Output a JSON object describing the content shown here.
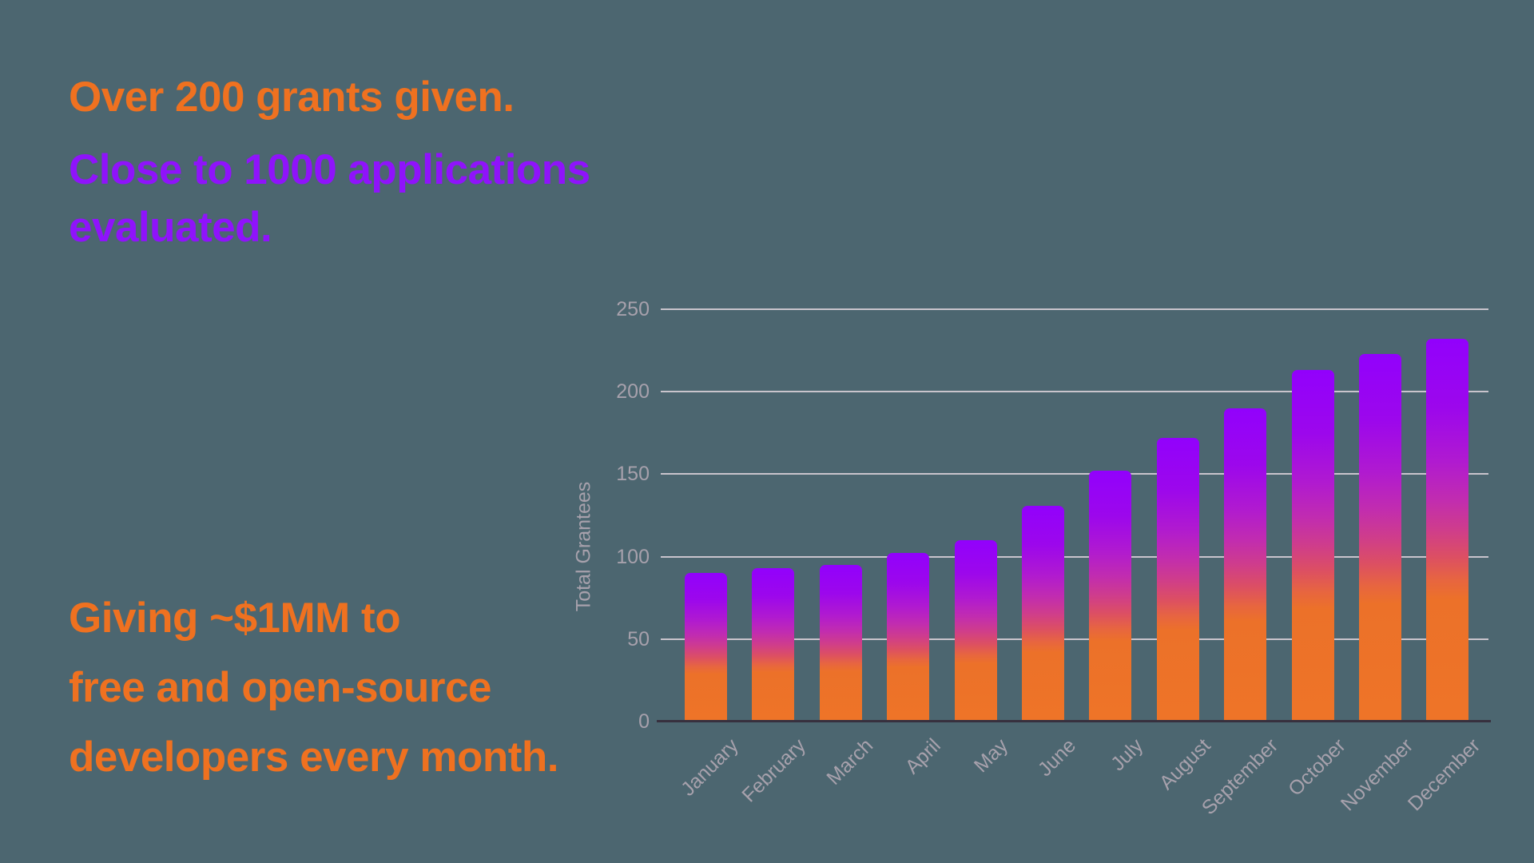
{
  "slide": {
    "headline_grants": "Over 200 grants given.",
    "headline_applications_line1": "Close to 1000 applications",
    "headline_applications_line2": "evaluated.",
    "headline_giving_lines": [
      "Giving ~$1MM to",
      "free and open-source",
      "developers every month."
    ]
  },
  "colors": {
    "background": "#4C6670",
    "orange": "#EF7120",
    "purple": "#8F13FB",
    "axis_text": "#A7A1AC",
    "gridline": "#C9C4CC",
    "baseline": "#37303E"
  },
  "chart_data": {
    "type": "bar",
    "title": "",
    "xlabel": "",
    "ylabel": "Total Grantees",
    "ylim": [
      0,
      250
    ],
    "yticks": [
      0,
      50,
      100,
      150,
      200,
      250
    ],
    "grid": true,
    "legend": false,
    "categories": [
      "January",
      "February",
      "March",
      "April",
      "May",
      "June",
      "July",
      "August",
      "September",
      "October",
      "November",
      "December"
    ],
    "values": [
      90,
      93,
      95,
      102,
      110,
      131,
      152,
      172,
      190,
      213,
      223,
      232
    ],
    "bar_gradient_top_to_bottom": [
      [
        "0%",
        "#9201FC"
      ],
      [
        "18%",
        "#9C07EC"
      ],
      [
        "32%",
        "#B01AD0"
      ],
      [
        "42%",
        "#C12CB0"
      ],
      [
        "50%",
        "#CF3D8B"
      ],
      [
        "57%",
        "#DC4F63"
      ],
      [
        "63%",
        "#E76540"
      ],
      [
        "68%",
        "#EC7129"
      ],
      [
        "100%",
        "#EE7428"
      ]
    ]
  }
}
